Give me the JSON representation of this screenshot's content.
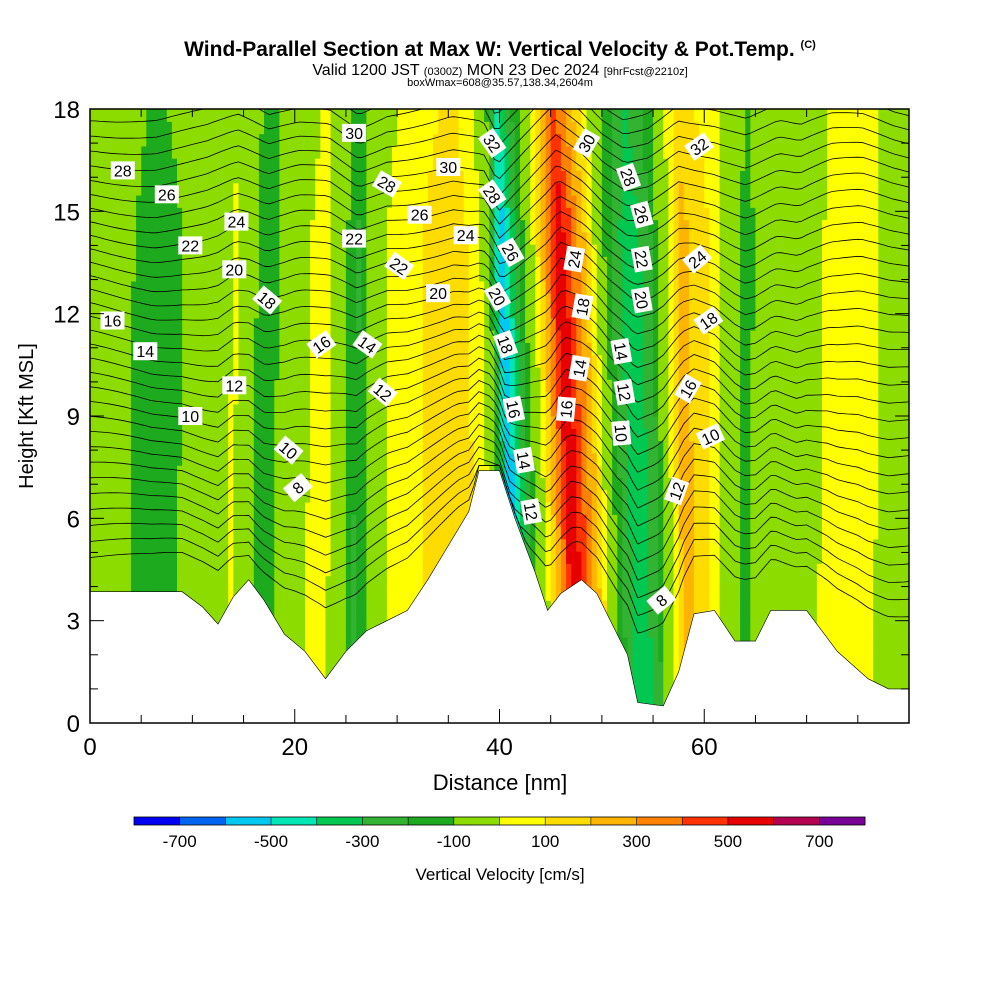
{
  "header": {
    "title": "Wind-Parallel Section at Max W: Vertical Velocity & Pot.Temp.",
    "copyright": "(C)",
    "valid_prefix": "Valid 1200 JST",
    "valid_utc": "(0300Z)",
    "valid_date": "MON 23 Dec 2024",
    "forecast": "[9hrFcst@2210z]",
    "boxinfo": "boxWmax=608@35.57,138.34,2604m"
  },
  "chart_data": {
    "type": "heatmap",
    "title": "Wind-Parallel Section at Max W: Vertical Velocity & Pot.Temp.",
    "xlabel": "Distance [nm]",
    "ylabel": "Height [Kft MSL]",
    "xlim": [
      0,
      80
    ],
    "ylim": [
      0,
      18
    ],
    "x_ticks": [
      0,
      20,
      40,
      60
    ],
    "y_ticks": [
      0,
      3,
      6,
      9,
      12,
      15,
      18
    ],
    "colorbar": {
      "label": "Vertical Velocity [cm/s]",
      "tick_labels": [
        -700,
        -500,
        -300,
        -100,
        100,
        300,
        500,
        700
      ],
      "levels": [
        -800,
        -700,
        -600,
        -500,
        -400,
        -300,
        -200,
        -100,
        100,
        200,
        300,
        400,
        500,
        600,
        700,
        800
      ],
      "colors": [
        "#0000f0",
        "#0064f0",
        "#00c8f0",
        "#00e6b4",
        "#00c850",
        "#32b432",
        "#1eaa1e",
        "#8cdc00",
        "#ffff00",
        "#ffdc00",
        "#ffb400",
        "#ff8200",
        "#ff3200",
        "#e60000",
        "#b40050",
        "#780096"
      ]
    },
    "w_columns": [
      {
        "x": 0,
        "w": 0
      },
      {
        "x": 6,
        "w": -150
      },
      {
        "x": 11,
        "w": -60
      },
      {
        "x": 14,
        "w": 120
      },
      {
        "x": 17,
        "w": -200
      },
      {
        "x": 20,
        "w": 60
      },
      {
        "x": 23,
        "w": 150
      },
      {
        "x": 26,
        "w": -220
      },
      {
        "x": 29,
        "w": 100
      },
      {
        "x": 32,
        "w": 180
      },
      {
        "x": 36,
        "w": 300
      },
      {
        "x": 39.5,
        "w": 60
      },
      {
        "x": 41,
        "w": -600
      },
      {
        "x": 42.5,
        "w": -300
      },
      {
        "x": 44.5,
        "w": 120
      },
      {
        "x": 47,
        "w": 700
      },
      {
        "x": 49.5,
        "w": 300
      },
      {
        "x": 51.5,
        "w": -150
      },
      {
        "x": 53.5,
        "w": -400
      },
      {
        "x": 55.5,
        "w": -200
      },
      {
        "x": 58,
        "w": 350
      },
      {
        "x": 61,
        "w": 180
      },
      {
        "x": 64,
        "w": -150
      },
      {
        "x": 67,
        "w": 60
      },
      {
        "x": 69,
        "w": -100
      },
      {
        "x": 72,
        "w": 150
      },
      {
        "x": 75,
        "w": 200
      },
      {
        "x": 78,
        "w": 40
      },
      {
        "x": 80,
        "w": 0
      }
    ],
    "terrain": [
      {
        "x": 0,
        "h": 3.85
      },
      {
        "x": 9,
        "h": 3.85
      },
      {
        "x": 11,
        "h": 3.4
      },
      {
        "x": 12.5,
        "h": 2.9
      },
      {
        "x": 14,
        "h": 3.7
      },
      {
        "x": 15.5,
        "h": 4.2
      },
      {
        "x": 17,
        "h": 3.6
      },
      {
        "x": 19,
        "h": 2.6
      },
      {
        "x": 21,
        "h": 2.1
      },
      {
        "x": 23,
        "h": 1.3
      },
      {
        "x": 25,
        "h": 2.1
      },
      {
        "x": 27,
        "h": 2.7
      },
      {
        "x": 29,
        "h": 3.0
      },
      {
        "x": 31,
        "h": 3.3
      },
      {
        "x": 33,
        "h": 4.2
      },
      {
        "x": 35,
        "h": 5.2
      },
      {
        "x": 37,
        "h": 6.2
      },
      {
        "x": 38,
        "h": 7.4
      },
      {
        "x": 40,
        "h": 7.4
      },
      {
        "x": 41.5,
        "h": 6.0
      },
      {
        "x": 43.5,
        "h": 4.4
      },
      {
        "x": 44.7,
        "h": 3.3
      },
      {
        "x": 46,
        "h": 3.8
      },
      {
        "x": 48,
        "h": 4.2
      },
      {
        "x": 49.5,
        "h": 3.8
      },
      {
        "x": 51,
        "h": 2.9
      },
      {
        "x": 52.5,
        "h": 2.0
      },
      {
        "x": 53.5,
        "h": 0.6
      },
      {
        "x": 56,
        "h": 0.5
      },
      {
        "x": 57.5,
        "h": 1.5
      },
      {
        "x": 59,
        "h": 3.2
      },
      {
        "x": 61,
        "h": 3.3
      },
      {
        "x": 63,
        "h": 2.4
      },
      {
        "x": 65,
        "h": 2.4
      },
      {
        "x": 66.5,
        "h": 3.3
      },
      {
        "x": 70,
        "h": 3.3
      },
      {
        "x": 73,
        "h": 2.1
      },
      {
        "x": 76,
        "h": 1.3
      },
      {
        "x": 78,
        "h": 1.0
      },
      {
        "x": 80,
        "h": 1.0
      }
    ],
    "theta_labels": [
      {
        "text": "28",
        "x": 3.2,
        "y": 16.2,
        "rot": 0
      },
      {
        "text": "26",
        "x": 7.5,
        "y": 15.5,
        "rot": 0
      },
      {
        "text": "24",
        "x": 14.3,
        "y": 14.7,
        "rot": 0
      },
      {
        "text": "22",
        "x": 9.8,
        "y": 14.0,
        "rot": 0
      },
      {
        "text": "20",
        "x": 14.1,
        "y": 13.3,
        "rot": 0
      },
      {
        "text": "16",
        "x": 2.2,
        "y": 11.8,
        "rot": 0
      },
      {
        "text": "14",
        "x": 5.4,
        "y": 10.9,
        "rot": 0
      },
      {
        "text": "12",
        "x": 14.1,
        "y": 9.9,
        "rot": 0
      },
      {
        "text": "10",
        "x": 9.8,
        "y": 9.0,
        "rot": 0
      },
      {
        "text": "18",
        "x": 17.3,
        "y": 12.4,
        "rot": 40
      },
      {
        "text": "10",
        "x": 19.4,
        "y": 8.0,
        "rot": 40
      },
      {
        "text": "8",
        "x": 20.3,
        "y": 6.9,
        "rot": -40
      },
      {
        "text": "16",
        "x": 22.6,
        "y": 11.1,
        "rot": -35
      },
      {
        "text": "30",
        "x": 25.8,
        "y": 17.3,
        "rot": 0
      },
      {
        "text": "28",
        "x": 29.0,
        "y": 15.8,
        "rot": 30
      },
      {
        "text": "22",
        "x": 25.8,
        "y": 14.2,
        "rot": 0
      },
      {
        "text": "26",
        "x": 32.2,
        "y": 14.9,
        "rot": 0
      },
      {
        "text": "22",
        "x": 30.2,
        "y": 13.4,
        "rot": 35
      },
      {
        "text": "14",
        "x": 27.1,
        "y": 11.1,
        "rot": 35
      },
      {
        "text": "12",
        "x": 28.6,
        "y": 9.7,
        "rot": 40
      },
      {
        "text": "30",
        "x": 35.0,
        "y": 16.3,
        "rot": 0
      },
      {
        "text": "24",
        "x": 36.7,
        "y": 14.3,
        "rot": 0
      },
      {
        "text": "20",
        "x": 34.0,
        "y": 12.6,
        "rot": 0
      },
      {
        "text": "32",
        "x": 39.3,
        "y": 17.0,
        "rot": 55
      },
      {
        "text": "28",
        "x": 39.3,
        "y": 15.5,
        "rot": 55
      },
      {
        "text": "26",
        "x": 41.1,
        "y": 13.8,
        "rot": 60
      },
      {
        "text": "20",
        "x": 39.8,
        "y": 12.5,
        "rot": 60
      },
      {
        "text": "18",
        "x": 40.6,
        "y": 11.1,
        "rot": 70
      },
      {
        "text": "16",
        "x": 41.4,
        "y": 9.2,
        "rot": 78
      },
      {
        "text": "14",
        "x": 42.4,
        "y": 7.7,
        "rot": 80
      },
      {
        "text": "12",
        "x": 43.1,
        "y": 6.2,
        "rot": 80
      },
      {
        "text": "30",
        "x": 48.5,
        "y": 17.0,
        "rot": -60
      },
      {
        "text": "24",
        "x": 47.3,
        "y": 13.6,
        "rot": -80
      },
      {
        "text": "18",
        "x": 48.1,
        "y": 12.2,
        "rot": -80
      },
      {
        "text": "14",
        "x": 47.8,
        "y": 10.4,
        "rot": -80
      },
      {
        "text": "16",
        "x": 46.5,
        "y": 9.2,
        "rot": -85
      },
      {
        "text": "28",
        "x": 52.6,
        "y": 16.0,
        "rot": 70
      },
      {
        "text": "26",
        "x": 53.9,
        "y": 14.9,
        "rot": 75
      },
      {
        "text": "22",
        "x": 53.9,
        "y": 13.6,
        "rot": 80
      },
      {
        "text": "20",
        "x": 53.9,
        "y": 12.4,
        "rot": 80
      },
      {
        "text": "14",
        "x": 51.9,
        "y": 10.9,
        "rot": 80
      },
      {
        "text": "12",
        "x": 52.2,
        "y": 9.7,
        "rot": 80
      },
      {
        "text": "10",
        "x": 51.9,
        "y": 8.5,
        "rot": 85
      },
      {
        "text": "32",
        "x": 59.5,
        "y": 16.9,
        "rot": -35
      },
      {
        "text": "24",
        "x": 59.3,
        "y": 13.6,
        "rot": -40
      },
      {
        "text": "18",
        "x": 60.4,
        "y": 11.8,
        "rot": -35
      },
      {
        "text": "16",
        "x": 58.4,
        "y": 9.8,
        "rot": -60
      },
      {
        "text": "10",
        "x": 60.6,
        "y": 8.4,
        "rot": -25
      },
      {
        "text": "12",
        "x": 57.3,
        "y": 6.8,
        "rot": -70
      },
      {
        "text": "8",
        "x": 55.8,
        "y": 3.6,
        "rot": -40
      }
    ]
  }
}
